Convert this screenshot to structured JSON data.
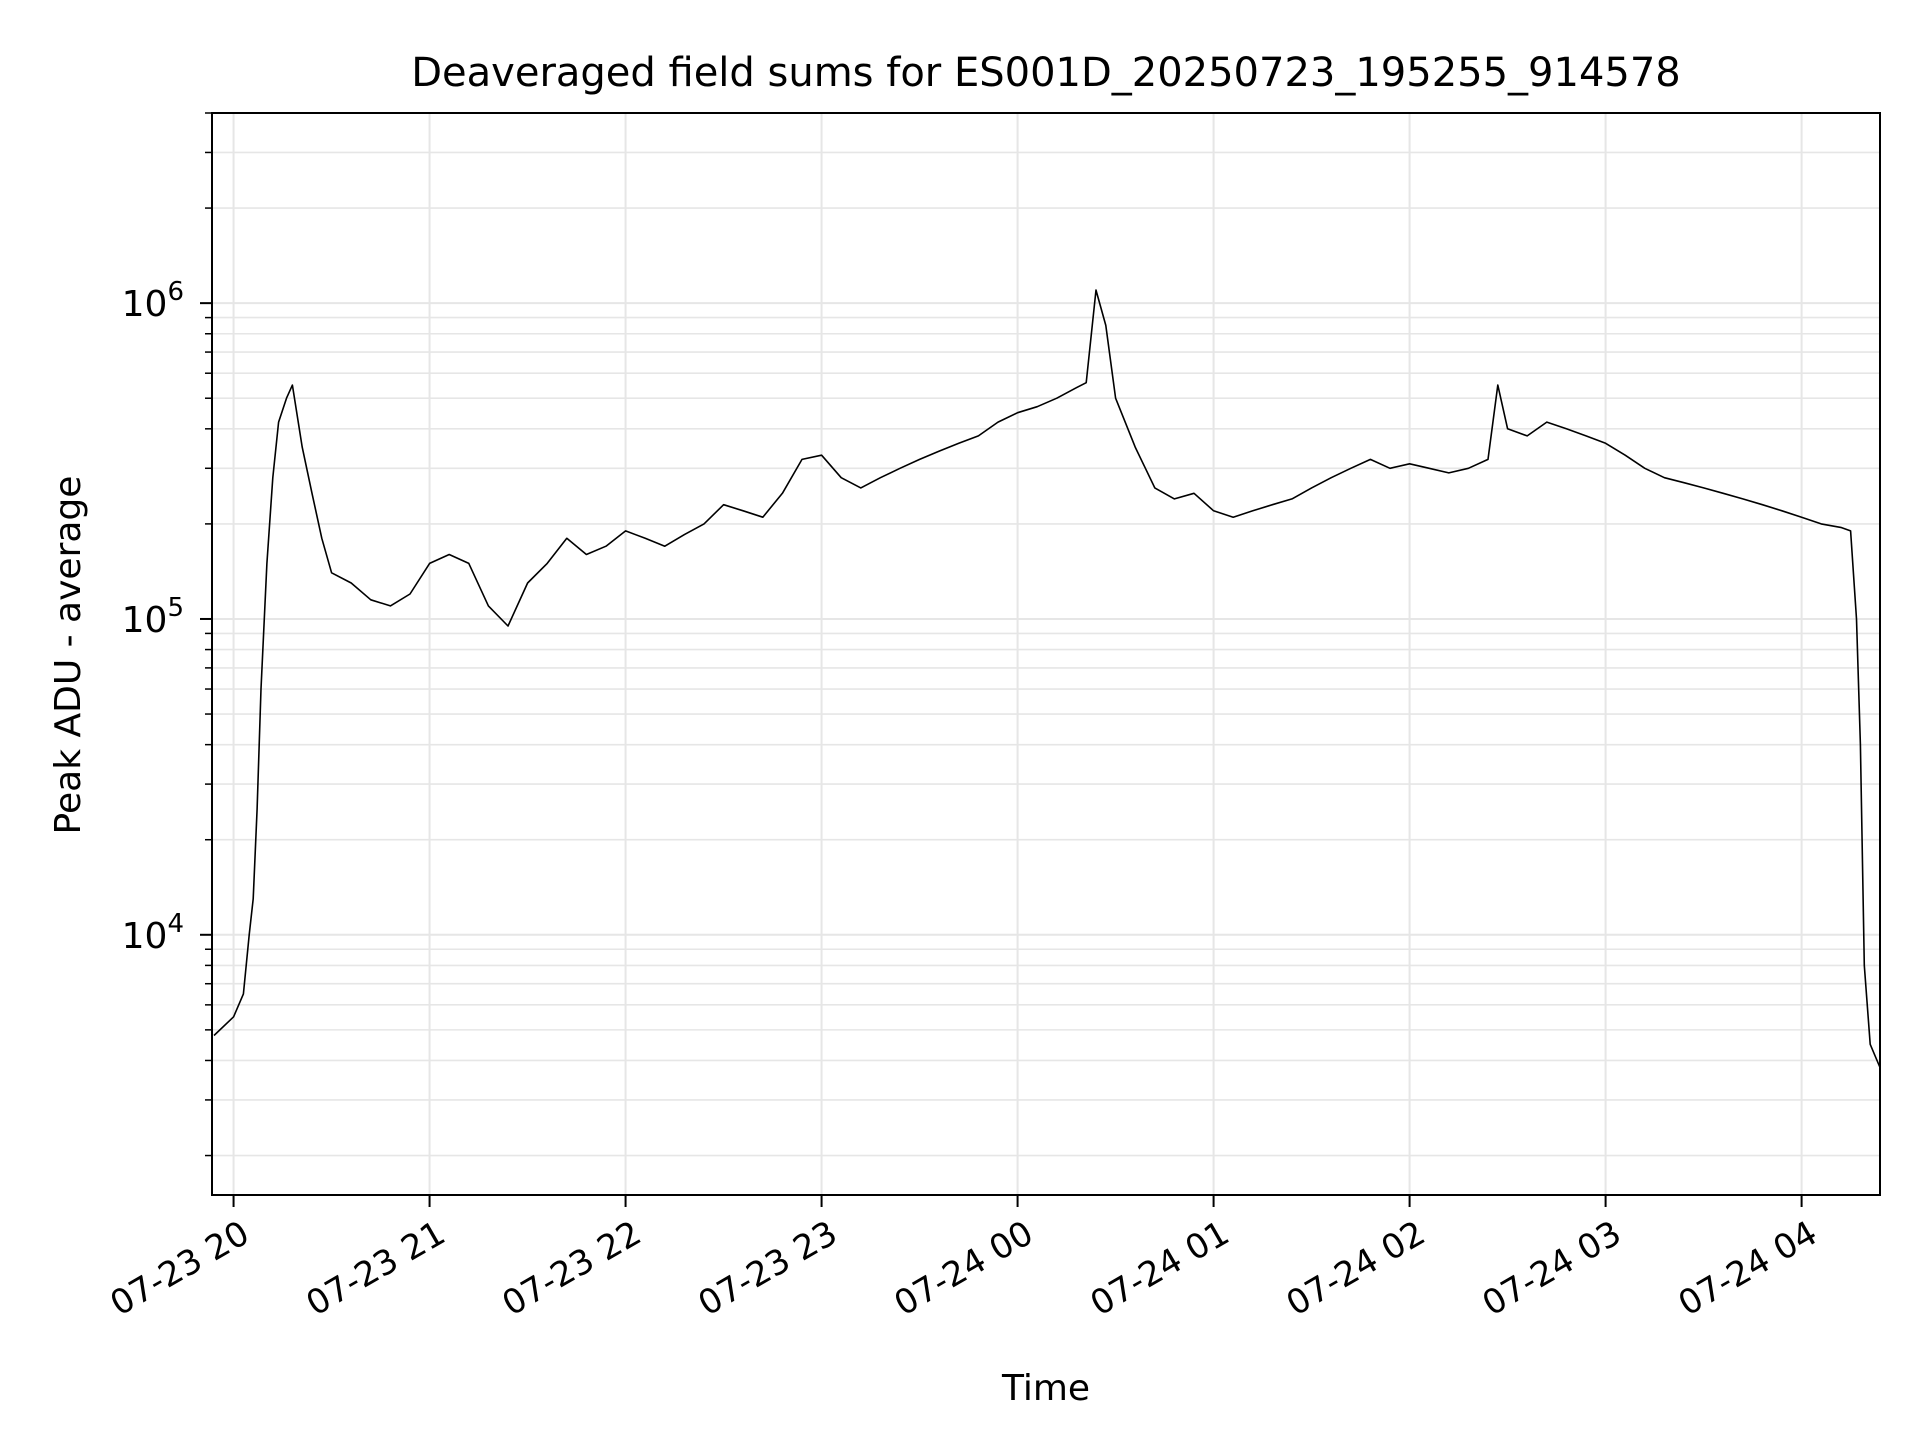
{
  "chart_data": {
    "type": "line",
    "title": "Deaveraged field sums for ES001D_20250723_195255_914578",
    "xlabel": "Time",
    "ylabel": "Peak ADU - average",
    "x_tick_labels": [
      "07-23 20",
      "07-23 21",
      "07-23 22",
      "07-23 23",
      "07-24 00",
      "07-24 01",
      "07-24 02",
      "07-24 03",
      "07-24 04"
    ],
    "x_ticks_hours": [
      0,
      1,
      2,
      3,
      4,
      5,
      6,
      7,
      8
    ],
    "y_scale": "log",
    "y_ticks": [
      {
        "base": "10",
        "exp": "4",
        "value": 10000
      },
      {
        "base": "10",
        "exp": "5",
        "value": 100000
      },
      {
        "base": "10",
        "exp": "6",
        "value": 1000000
      }
    ],
    "xlim_hours": [
      -0.11,
      8.4
    ],
    "ylim": [
      1500,
      4000000
    ],
    "grid": true,
    "series": [
      {
        "color": "#000000",
        "points": [
          [
            -0.1,
            4800
          ],
          [
            0.0,
            5500
          ],
          [
            0.05,
            6500
          ],
          [
            0.08,
            10000
          ],
          [
            0.1,
            13000
          ],
          [
            0.12,
            25000
          ],
          [
            0.14,
            60000
          ],
          [
            0.17,
            150000
          ],
          [
            0.2,
            280000
          ],
          [
            0.23,
            420000
          ],
          [
            0.27,
            500000
          ],
          [
            0.3,
            550000
          ],
          [
            0.35,
            350000
          ],
          [
            0.4,
            250000
          ],
          [
            0.45,
            180000
          ],
          [
            0.5,
            140000
          ],
          [
            0.6,
            130000
          ],
          [
            0.7,
            115000
          ],
          [
            0.8,
            110000
          ],
          [
            0.9,
            120000
          ],
          [
            1.0,
            150000
          ],
          [
            1.1,
            160000
          ],
          [
            1.2,
            150000
          ],
          [
            1.3,
            110000
          ],
          [
            1.4,
            95000
          ],
          [
            1.5,
            130000
          ],
          [
            1.6,
            150000
          ],
          [
            1.7,
            180000
          ],
          [
            1.8,
            160000
          ],
          [
            1.9,
            170000
          ],
          [
            2.0,
            190000
          ],
          [
            2.1,
            180000
          ],
          [
            2.2,
            170000
          ],
          [
            2.3,
            185000
          ],
          [
            2.4,
            200000
          ],
          [
            2.5,
            230000
          ],
          [
            2.6,
            220000
          ],
          [
            2.7,
            210000
          ],
          [
            2.8,
            250000
          ],
          [
            2.9,
            320000
          ],
          [
            3.0,
            330000
          ],
          [
            3.1,
            280000
          ],
          [
            3.2,
            260000
          ],
          [
            3.3,
            280000
          ],
          [
            3.4,
            300000
          ],
          [
            3.5,
            320000
          ],
          [
            3.6,
            340000
          ],
          [
            3.7,
            360000
          ],
          [
            3.8,
            380000
          ],
          [
            3.9,
            420000
          ],
          [
            4.0,
            450000
          ],
          [
            4.1,
            470000
          ],
          [
            4.2,
            500000
          ],
          [
            4.3,
            540000
          ],
          [
            4.35,
            560000
          ],
          [
            4.4,
            1100000
          ],
          [
            4.45,
            850000
          ],
          [
            4.5,
            500000
          ],
          [
            4.6,
            350000
          ],
          [
            4.7,
            260000
          ],
          [
            4.8,
            240000
          ],
          [
            4.9,
            250000
          ],
          [
            5.0,
            220000
          ],
          [
            5.1,
            210000
          ],
          [
            5.2,
            220000
          ],
          [
            5.3,
            230000
          ],
          [
            5.4,
            240000
          ],
          [
            5.5,
            260000
          ],
          [
            5.6,
            280000
          ],
          [
            5.7,
            300000
          ],
          [
            5.8,
            320000
          ],
          [
            5.9,
            300000
          ],
          [
            6.0,
            310000
          ],
          [
            6.1,
            300000
          ],
          [
            6.2,
            290000
          ],
          [
            6.3,
            300000
          ],
          [
            6.4,
            320000
          ],
          [
            6.45,
            550000
          ],
          [
            6.5,
            400000
          ],
          [
            6.6,
            380000
          ],
          [
            6.7,
            420000
          ],
          [
            6.8,
            400000
          ],
          [
            6.9,
            380000
          ],
          [
            7.0,
            360000
          ],
          [
            7.1,
            330000
          ],
          [
            7.2,
            300000
          ],
          [
            7.3,
            280000
          ],
          [
            7.4,
            270000
          ],
          [
            7.5,
            260000
          ],
          [
            7.6,
            250000
          ],
          [
            7.7,
            240000
          ],
          [
            7.8,
            230000
          ],
          [
            7.9,
            220000
          ],
          [
            8.0,
            210000
          ],
          [
            8.1,
            200000
          ],
          [
            8.2,
            195000
          ],
          [
            8.25,
            190000
          ],
          [
            8.28,
            100000
          ],
          [
            8.3,
            40000
          ],
          [
            8.32,
            8000
          ],
          [
            8.35,
            4500
          ],
          [
            8.4,
            3800
          ]
        ]
      }
    ]
  }
}
